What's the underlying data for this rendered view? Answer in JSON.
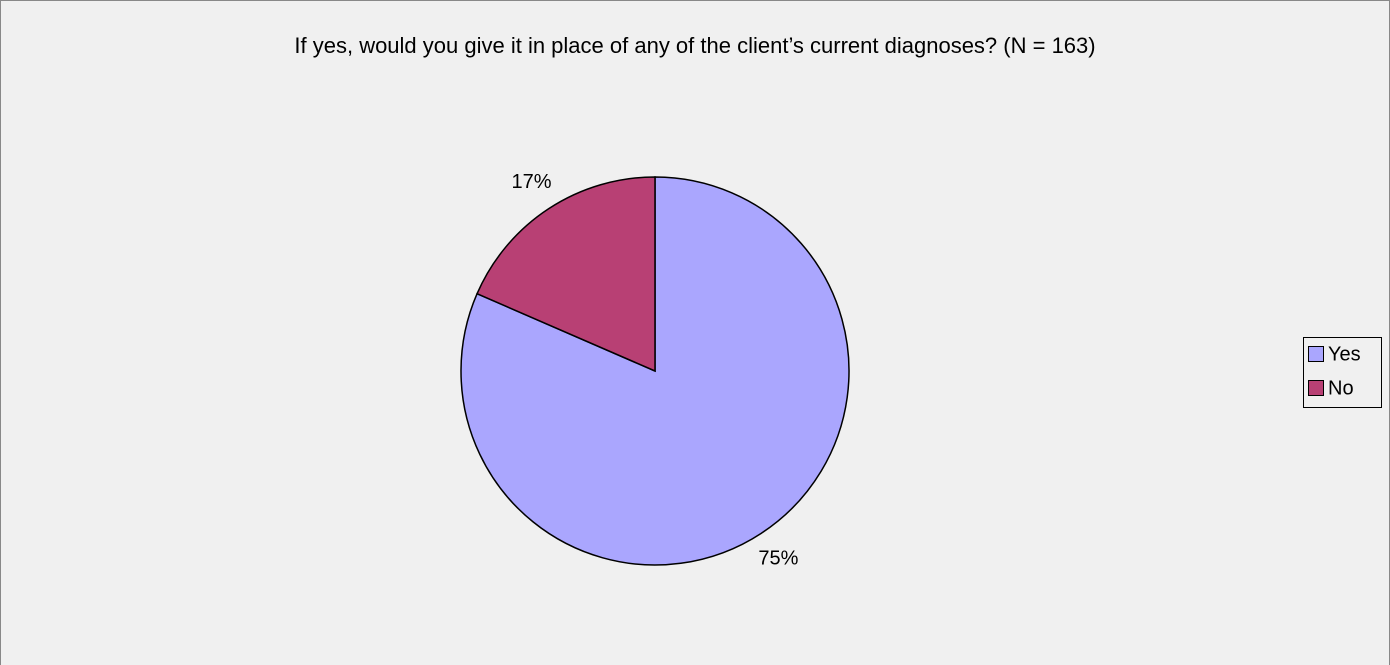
{
  "chart_data": {
    "type": "pie",
    "title": "If yes, would you give it in place of any of the client’s current diagnoses? (N = 163)",
    "categories": [
      "Yes",
      "No"
    ],
    "values": [
      75,
      17
    ],
    "value_labels": [
      "75%",
      "17%"
    ],
    "colors": [
      "#aaa6fe",
      "#b84074"
    ],
    "legend": "right"
  }
}
